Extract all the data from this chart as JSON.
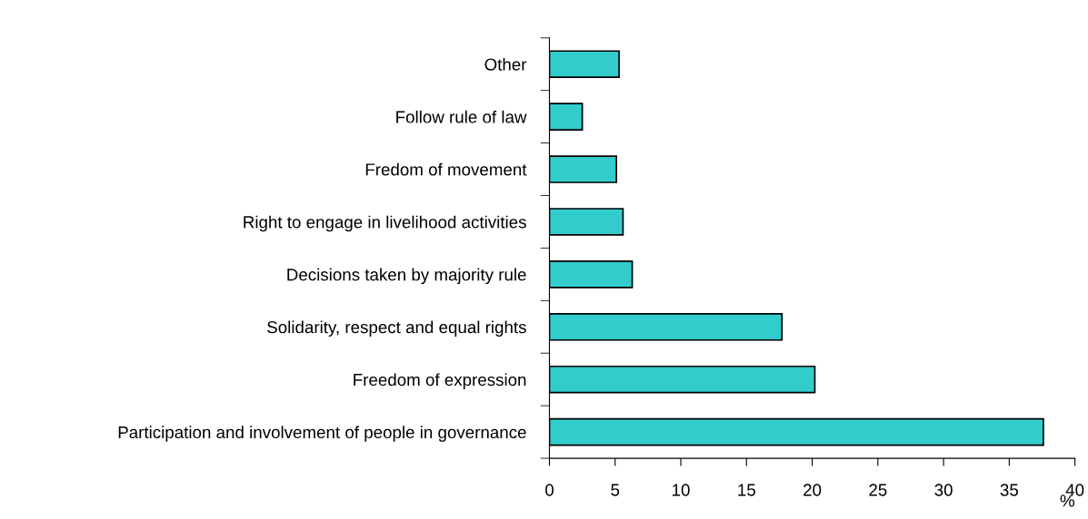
{
  "chart_data": {
    "type": "bar",
    "orientation": "horizontal",
    "xlabel": "%",
    "categories": [
      "Other",
      "Follow rule of law",
      "Fredom of movement",
      "Right to engage in livelihood activities",
      "Decisions taken by majority rule",
      "Solidarity, respect and equal rights",
      "Freedom of expression",
      "Participation and involvement of people in governance"
    ],
    "values": [
      5.3,
      2.5,
      5.1,
      5.6,
      6.3,
      17.7,
      20.2,
      37.6
    ],
    "color": "#33cccc",
    "xlim": [
      0,
      40
    ],
    "xticks": [
      0,
      5,
      10,
      15,
      20,
      25,
      30,
      35,
      40
    ],
    "grid": false,
    "legend": false
  }
}
